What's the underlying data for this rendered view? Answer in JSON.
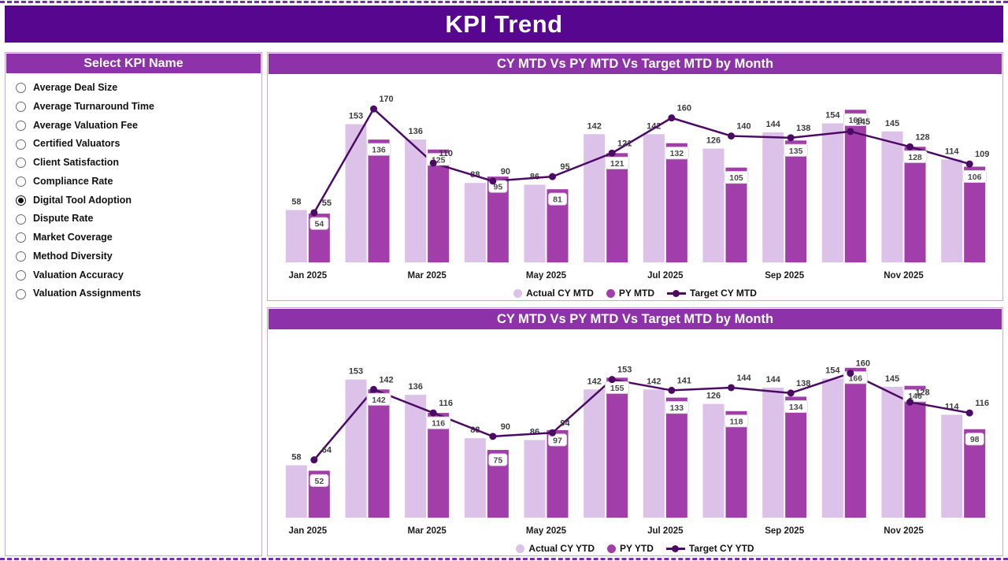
{
  "page": {
    "title": "KPI Trend"
  },
  "kpi_panel": {
    "header": "Select KPI Name",
    "options": [
      {
        "label": "Average Deal Size",
        "selected": false
      },
      {
        "label": "Average Turnaround Time",
        "selected": false
      },
      {
        "label": "Average Valuation Fee",
        "selected": false
      },
      {
        "label": "Certified Valuators",
        "selected": false
      },
      {
        "label": "Client Satisfaction",
        "selected": false
      },
      {
        "label": "Compliance Rate",
        "selected": false
      },
      {
        "label": "Digital Tool Adoption",
        "selected": true
      },
      {
        "label": "Dispute Rate",
        "selected": false
      },
      {
        "label": "Market Coverage",
        "selected": false
      },
      {
        "label": "Method Diversity",
        "selected": false
      },
      {
        "label": "Valuation Accuracy",
        "selected": false
      },
      {
        "label": "Valuation Assignments",
        "selected": false
      }
    ]
  },
  "colors": {
    "header_bg": "#56068f",
    "panel_header_bg": "#8d32a8",
    "actual_bar": "#dcc2e8",
    "py_bar": "#a23ea9",
    "target_line": "#4b0a63",
    "panel_border": "#c9a3d9"
  },
  "chart_data": [
    {
      "type": "bar",
      "subtype": "clustered-bars-with-line",
      "title": "CY MTD Vs PY MTD Vs Target MTD by Month",
      "categories": [
        "Jan 2025",
        "Feb 2025",
        "Mar 2025",
        "Apr 2025",
        "May 2025",
        "Jun 2025",
        "Jul 2025",
        "Aug 2025",
        "Sep 2025",
        "Oct 2025",
        "Nov 2025",
        "Dec 2025"
      ],
      "x_visible_tick_indices": [
        0,
        2,
        4,
        6,
        8,
        10
      ],
      "series": [
        {
          "name": "Actual CY MTD",
          "type": "bar",
          "values": [
            58,
            153,
            136,
            88,
            86,
            142,
            142,
            126,
            144,
            154,
            145,
            114
          ]
        },
        {
          "name": "PY MTD",
          "type": "bar",
          "values": [
            54,
            136,
            125,
            95,
            81,
            121,
            132,
            105,
            135,
            169,
            128,
            106
          ]
        },
        {
          "name": "Target CY MTD",
          "type": "line",
          "values": [
            55,
            170,
            110,
            90,
            95,
            121,
            160,
            140,
            138,
            145,
            128,
            109
          ]
        }
      ],
      "ylim": [
        0,
        185
      ],
      "grid": false,
      "legend_position": "bottom"
    },
    {
      "type": "bar",
      "subtype": "clustered-bars-with-line",
      "title": "CY MTD Vs PY MTD Vs Target MTD by Month",
      "categories": [
        "Jan 2025",
        "Feb 2025",
        "Mar 2025",
        "Apr 2025",
        "May 2025",
        "Jun 2025",
        "Jul 2025",
        "Aug 2025",
        "Sep 2025",
        "Oct 2025",
        "Nov 2025",
        "Dec 2025"
      ],
      "x_visible_tick_indices": [
        0,
        2,
        4,
        6,
        8,
        10
      ],
      "series": [
        {
          "name": "Actual CY YTD",
          "type": "bar",
          "values": [
            58,
            153,
            136,
            88,
            86,
            142,
            142,
            126,
            144,
            154,
            145,
            114
          ]
        },
        {
          "name": "PY YTD",
          "type": "bar",
          "values": [
            52,
            142,
            116,
            75,
            97,
            155,
            133,
            118,
            134,
            166,
            146,
            98
          ]
        },
        {
          "name": "Target CY YTD",
          "type": "line",
          "values": [
            64,
            142,
            116,
            90,
            94,
            153,
            141,
            144,
            138,
            160,
            128,
            116
          ]
        }
      ],
      "ylim": [
        0,
        185
      ],
      "grid": false,
      "legend_position": "bottom"
    }
  ]
}
